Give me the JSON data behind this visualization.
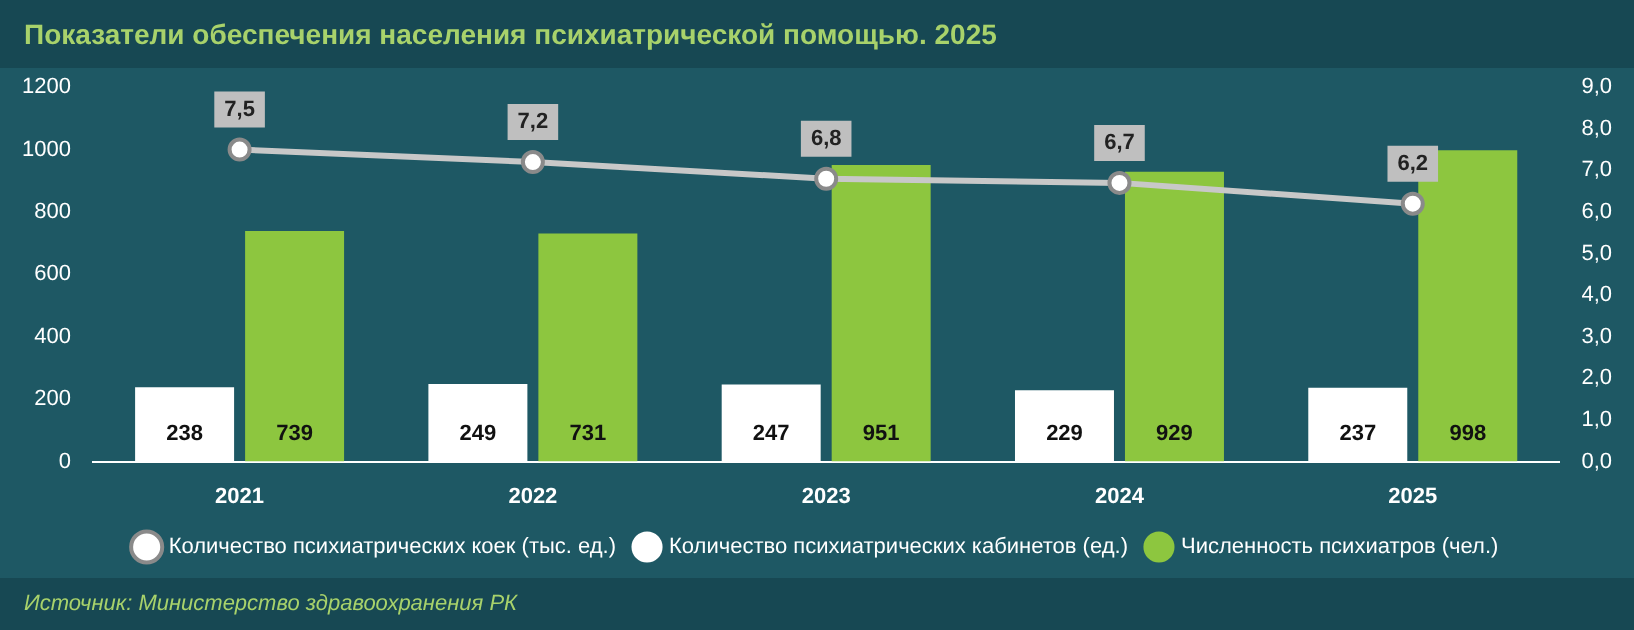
{
  "chart_data": {
    "type": "bar",
    "title": "Показатели обеспечения населения психиатрической помощью. 2025",
    "categories": [
      "2021",
      "2022",
      "2023",
      "2024",
      "2025"
    ],
    "series": [
      {
        "name": "Количество психиатрических кабинетов (ед.)",
        "color": "#ffffff",
        "values": [
          238,
          249,
          247,
          229,
          237
        ],
        "value_labels": [
          "238",
          "249",
          "247",
          "229",
          "237"
        ]
      },
      {
        "name": "Численность психиатров (чел.)",
        "color": "#8dc63f",
        "values": [
          739,
          731,
          951,
          929,
          998
        ],
        "value_labels": [
          "739",
          "731",
          "951",
          "929",
          "998"
        ]
      },
      {
        "name": "Количество психиатрических коек (тыс. ед.)",
        "type": "line",
        "axis": "y2",
        "color": "#c8c8c8",
        "marker": "circle",
        "values": [
          7.5,
          7.2,
          6.8,
          6.7,
          6.2
        ],
        "value_labels": [
          "7,5",
          "7,2",
          "6,8",
          "6,7",
          "6,2"
        ]
      }
    ],
    "ylim": [
      0,
      1200
    ],
    "yticks": [
      0,
      200,
      400,
      600,
      800,
      1000,
      1200
    ],
    "y2lim": [
      0,
      9
    ],
    "y2ticks": [
      {
        "value": 0,
        "label": "0,0"
      },
      {
        "value": 1,
        "label": "1,0"
      },
      {
        "value": 2,
        "label": "2,0"
      },
      {
        "value": 3,
        "label": "3,0"
      },
      {
        "value": 4,
        "label": "4,0"
      },
      {
        "value": 5,
        "label": "5,0"
      },
      {
        "value": 6,
        "label": "6,0"
      },
      {
        "value": 7,
        "label": "7,0"
      },
      {
        "value": 8,
        "label": "8,0"
      },
      {
        "value": 9,
        "label": "9,0"
      }
    ],
    "legend": "bottom",
    "grid": false,
    "annotations": [
      "Источник: Министерство здравоохранения РК"
    ]
  }
}
